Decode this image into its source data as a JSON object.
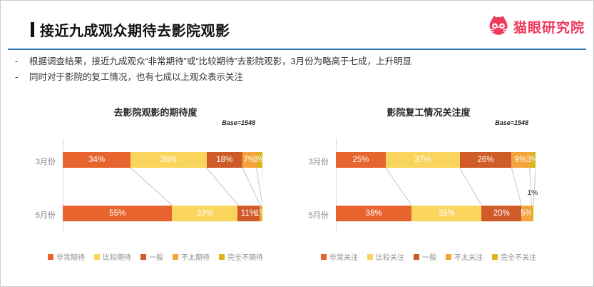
{
  "slide": {
    "title": "接近九成观众期待去影院观影",
    "logo_text": "猫眼研究院",
    "brand_color": "#EF3A5D",
    "divider_color": "#2E74B5",
    "bullets": [
      "根据调查结果，接近九成观众“非常期待”或“比较期待”去影院观影，3月份为略高于七成，上升明显",
      "同时对于影院的复工情况，也有七成以上观众表示关注"
    ]
  },
  "palette": [
    "#E7642E",
    "#FAD55E",
    "#CF5B28",
    "#F5A43C",
    "#DCB41E"
  ],
  "chart_data": [
    {
      "type": "bar",
      "stacked": true,
      "orientation": "horizontal",
      "title": "去影院观影的期待度",
      "base_label": "Base=1548",
      "xlim": [
        0,
        100
      ],
      "grid": false,
      "legend_position": "bottom",
      "categories": [
        "3月份",
        "5月份"
      ],
      "legend": [
        "非常期待",
        "比较期待",
        "一般",
        "不太期待",
        "完全不期待"
      ],
      "rows": [
        {
          "category": "3月份",
          "segments": [
            {
              "label": "34%",
              "value": 34
            },
            {
              "label": "38%",
              "value": 38
            },
            {
              "label": "18%",
              "value": 18
            },
            {
              "label": "7%",
              "value": 7
            },
            {
              "label": "3%",
              "value": 3
            }
          ]
        },
        {
          "category": "5月份",
          "segments": [
            {
              "label": "55%",
              "value": 55
            },
            {
              "label": "33%",
              "value": 33
            },
            {
              "label": "11%",
              "value": 11
            },
            {
              "label": "1%",
              "value": 1
            },
            {
              "label": "",
              "value": 0.4
            }
          ]
        }
      ]
    },
    {
      "type": "bar",
      "stacked": true,
      "orientation": "horizontal",
      "title": "影院复工情况关注度",
      "base_label": "Base=1548",
      "xlim": [
        0,
        100
      ],
      "grid": false,
      "legend_position": "bottom",
      "categories": [
        "3月份",
        "5月份"
      ],
      "legend": [
        "非常关注",
        "比较关注",
        "一般",
        "不太关注",
        "完全不关注"
      ],
      "rows": [
        {
          "category": "3月份",
          "segments": [
            {
              "label": "25%",
              "value": 25
            },
            {
              "label": "37%",
              "value": 37
            },
            {
              "label": "26%",
              "value": 26
            },
            {
              "label": "9%",
              "value": 9
            },
            {
              "label": "3%",
              "value": 3
            }
          ]
        },
        {
          "category": "5月份",
          "segments": [
            {
              "label": "38%",
              "value": 38
            },
            {
              "label": "35%",
              "value": 35
            },
            {
              "label": "20%",
              "value": 20
            },
            {
              "label": "5%",
              "value": 5
            },
            {
              "label": "1%",
              "value": 1,
              "label_outside": true
            }
          ]
        }
      ]
    }
  ]
}
